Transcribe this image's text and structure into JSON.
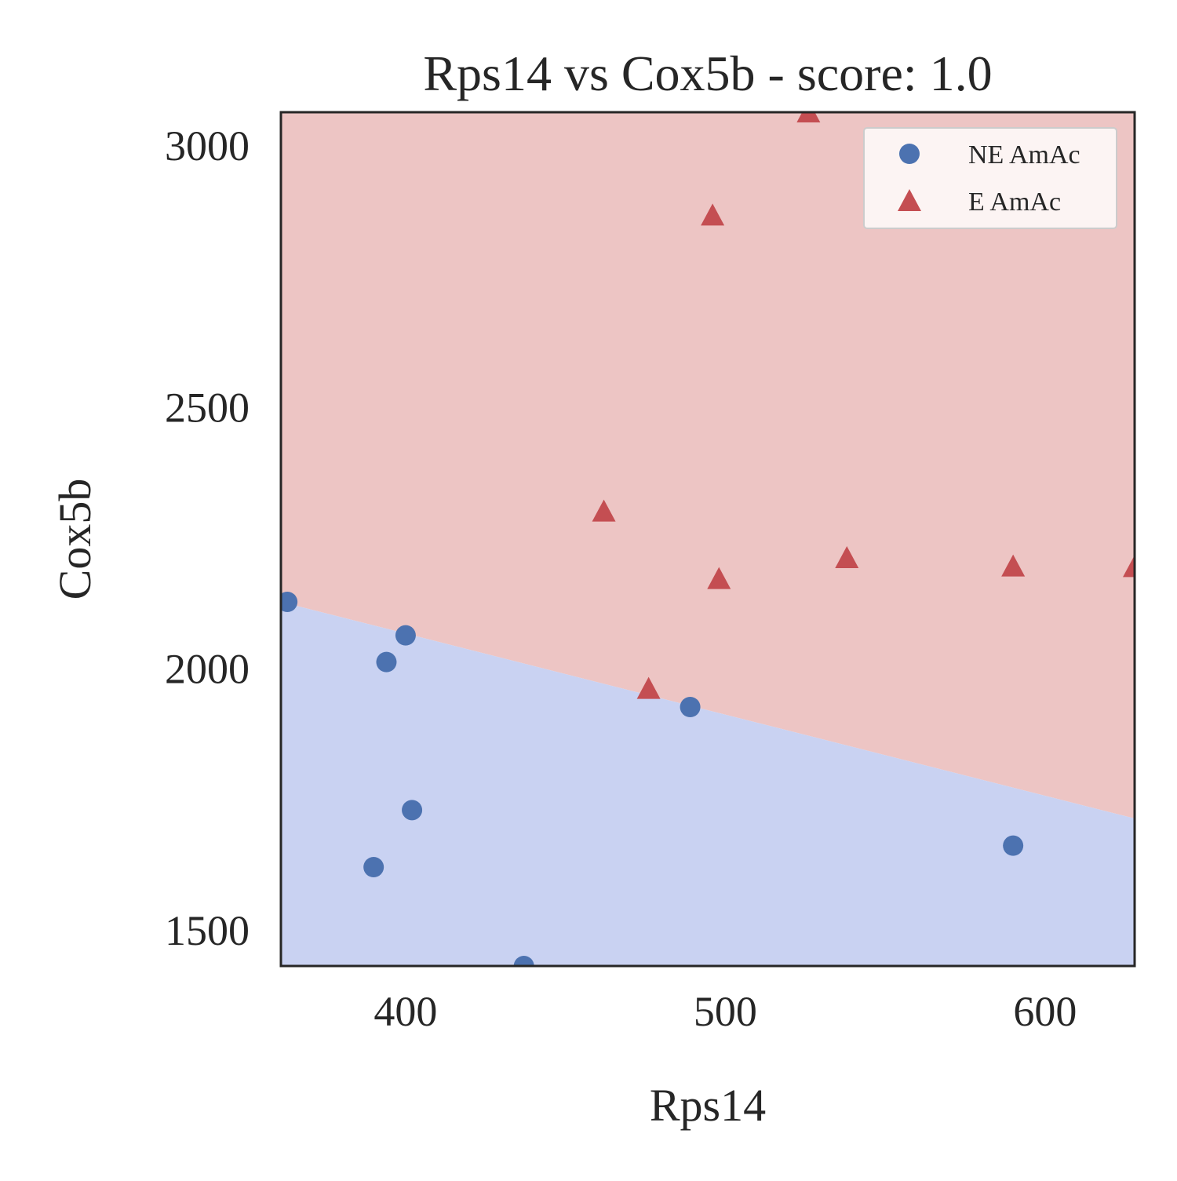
{
  "chart_data": {
    "type": "scatter",
    "title": "Rps14 vs Cox5b - score: 1.0",
    "xlabel": "Rps14",
    "ylabel": "Cox5b",
    "xlim": [
      361,
      628
    ],
    "ylim": [
      1431,
      3063
    ],
    "x_ticks": [
      {
        "value": 400,
        "label": "400"
      },
      {
        "value": 500,
        "label": "500"
      },
      {
        "value": 600,
        "label": "600"
      }
    ],
    "y_ticks": [
      {
        "value": 1500,
        "label": "1500"
      },
      {
        "value": 2000,
        "label": "2000"
      },
      {
        "value": 2500,
        "label": "2500"
      },
      {
        "value": 3000,
        "label": "3000"
      }
    ],
    "grid": false,
    "legend_position": "top-right",
    "decision_boundary": {
      "points": [
        [
          361,
          2127
        ],
        [
          628,
          1713
        ]
      ],
      "upper_region_class": "E AmAc",
      "lower_region_class": "NE AmAc"
    },
    "region_colors": {
      "upper": "#edc5c4",
      "lower": "#c9d2f2"
    },
    "series": [
      {
        "name": "NE AmAc",
        "marker": "circle",
        "color": "#4c72b0",
        "points": [
          [
            363,
            2127
          ],
          [
            400,
            2063
          ],
          [
            394,
            2012
          ],
          [
            489,
            1926
          ],
          [
            402,
            1729
          ],
          [
            390,
            1620
          ],
          [
            590,
            1661
          ],
          [
            437,
            1431
          ]
        ]
      },
      {
        "name": "E AmAc",
        "marker": "triangle",
        "color": "#c44e52",
        "points": [
          [
            526,
            3063
          ],
          [
            496,
            2866
          ],
          [
            462,
            2300
          ],
          [
            538,
            2211
          ],
          [
            590,
            2195
          ],
          [
            628,
            2194
          ],
          [
            498,
            2171
          ],
          [
            476,
            1961
          ]
        ]
      }
    ]
  }
}
